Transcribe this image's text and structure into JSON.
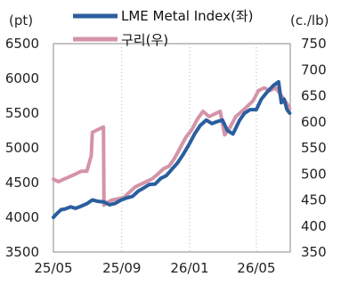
{
  "chart_data": {
    "type": "line",
    "left_unit": "(pt)",
    "right_unit": "(c./lb)",
    "x_ticks": [
      "25/05",
      "25/09",
      "26/01",
      "26/05"
    ],
    "y_left": {
      "ticks": [
        "3500",
        "4000",
        "4500",
        "5000",
        "5500",
        "6000",
        "6500"
      ],
      "lim": [
        3500,
        6500
      ]
    },
    "y_right": {
      "ticks": [
        "350",
        "400",
        "450",
        "500",
        "550",
        "600",
        "650",
        "700",
        "750"
      ],
      "lim": [
        350,
        750
      ]
    },
    "grid": "vertical-dotted",
    "legend_placement": "top-center",
    "series": [
      {
        "name": "LME Metal Index(좌)",
        "axis": "left",
        "color": "#2b5e9e",
        "points": [
          [
            "2025-05-01",
            4000
          ],
          [
            "2025-05-08",
            4060
          ],
          [
            "2025-05-15",
            4110
          ],
          [
            "2025-05-22",
            4120
          ],
          [
            "2025-06-01",
            4150
          ],
          [
            "2025-06-10",
            4130
          ],
          [
            "2025-06-20",
            4160
          ],
          [
            "2025-07-01",
            4200
          ],
          [
            "2025-07-10",
            4250
          ],
          [
            "2025-07-20",
            4230
          ],
          [
            "2025-07-31",
            4220
          ],
          [
            "2025-08-10",
            4180
          ],
          [
            "2025-08-20",
            4200
          ],
          [
            "2025-08-31",
            4250
          ],
          [
            "2025-09-10",
            4280
          ],
          [
            "2025-09-20",
            4300
          ],
          [
            "2025-10-01",
            4380
          ],
          [
            "2025-10-10",
            4420
          ],
          [
            "2025-10-20",
            4470
          ],
          [
            "2025-10-31",
            4480
          ],
          [
            "2025-11-10",
            4560
          ],
          [
            "2025-11-20",
            4600
          ],
          [
            "2025-12-01",
            4700
          ],
          [
            "2025-12-10",
            4780
          ],
          [
            "2025-12-20",
            4900
          ],
          [
            "2025-12-31",
            5050
          ],
          [
            "2026-01-10",
            5200
          ],
          [
            "2026-01-20",
            5320
          ],
          [
            "2026-01-31",
            5400
          ],
          [
            "2026-02-10",
            5350
          ],
          [
            "2026-02-20",
            5380
          ],
          [
            "2026-03-01",
            5400
          ],
          [
            "2026-03-10",
            5250
          ],
          [
            "2026-03-20",
            5200
          ],
          [
            "2026-04-01",
            5400
          ],
          [
            "2026-04-10",
            5500
          ],
          [
            "2026-04-20",
            5550
          ],
          [
            "2026-05-01",
            5550
          ],
          [
            "2026-05-10",
            5700
          ],
          [
            "2026-05-20",
            5800
          ],
          [
            "2026-06-01",
            5900
          ],
          [
            "2026-06-10",
            5950
          ],
          [
            "2026-06-15",
            5650
          ],
          [
            "2026-06-20",
            5700
          ],
          [
            "2026-06-25",
            5550
          ],
          [
            "2026-06-30",
            5500
          ]
        ]
      },
      {
        "name": "구리(우)",
        "axis": "right",
        "color": "#d494a8",
        "points": [
          [
            "2025-05-01",
            490
          ],
          [
            "2025-05-10",
            485
          ],
          [
            "2025-05-20",
            490
          ],
          [
            "2025-05-31",
            495
          ],
          [
            "2025-06-10",
            500
          ],
          [
            "2025-06-20",
            505
          ],
          [
            "2025-06-30",
            505
          ],
          [
            "2025-07-08",
            535
          ],
          [
            "2025-07-10",
            580
          ],
          [
            "2025-07-20",
            585
          ],
          [
            "2025-07-30",
            590
          ],
          [
            "2025-07-31",
            440
          ],
          [
            "2025-08-05",
            445
          ],
          [
            "2025-08-15",
            450
          ],
          [
            "2025-08-25",
            452
          ],
          [
            "2025-09-05",
            455
          ],
          [
            "2025-09-15",
            465
          ],
          [
            "2025-09-25",
            475
          ],
          [
            "2025-10-05",
            480
          ],
          [
            "2025-10-15",
            485
          ],
          [
            "2025-10-25",
            490
          ],
          [
            "2025-11-05",
            500
          ],
          [
            "2025-11-15",
            510
          ],
          [
            "2025-11-25",
            515
          ],
          [
            "2025-12-05",
            530
          ],
          [
            "2025-12-15",
            550
          ],
          [
            "2025-12-25",
            570
          ],
          [
            "2026-01-05",
            585
          ],
          [
            "2026-01-15",
            605
          ],
          [
            "2026-01-25",
            620
          ],
          [
            "2026-02-05",
            610
          ],
          [
            "2026-02-15",
            615
          ],
          [
            "2026-02-25",
            620
          ],
          [
            "2026-03-05",
            575
          ],
          [
            "2026-03-15",
            590
          ],
          [
            "2026-03-25",
            610
          ],
          [
            "2026-04-05",
            620
          ],
          [
            "2026-04-15",
            630
          ],
          [
            "2026-04-25",
            640
          ],
          [
            "2026-05-05",
            660
          ],
          [
            "2026-05-15",
            665
          ],
          [
            "2026-05-25",
            660
          ],
          [
            "2026-06-05",
            665
          ],
          [
            "2026-06-15",
            650
          ],
          [
            "2026-06-25",
            635
          ],
          [
            "2026-06-30",
            625
          ]
        ]
      }
    ]
  }
}
